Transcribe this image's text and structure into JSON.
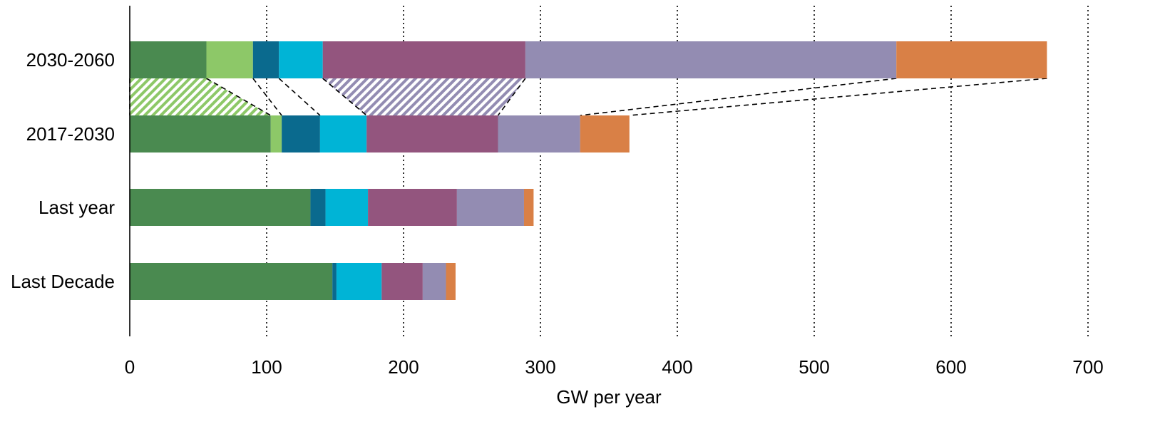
{
  "chart_data": {
    "type": "bar",
    "orientation": "horizontal",
    "stacked": true,
    "title": "",
    "xlabel": "GW per year",
    "ylabel": "",
    "xlim": [
      0,
      700
    ],
    "x_ticks": [
      0,
      100,
      200,
      300,
      400,
      500,
      600,
      700
    ],
    "grid": "vertical dotted",
    "legend": "none",
    "categories": [
      "2030-2060",
      "2017-2030",
      "Last year",
      "Last Decade"
    ],
    "series": [
      {
        "color": "#4a8a50",
        "values": [
          56,
          103,
          132,
          148
        ]
      },
      {
        "color": "#8dc868",
        "values": [
          34,
          8,
          0,
          0
        ]
      },
      {
        "color": "#0a6a8e",
        "values": [
          19,
          28,
          11,
          3
        ]
      },
      {
        "color": "#00b4d6",
        "values": [
          32,
          34,
          31,
          33
        ]
      },
      {
        "color": "#93557e",
        "values": [
          148,
          96,
          65,
          30
        ]
      },
      {
        "color": "#938cb2",
        "values": [
          271,
          60,
          49,
          17
        ]
      },
      {
        "color": "#d98046",
        "values": [
          110,
          36,
          7,
          7
        ]
      }
    ],
    "connectors": [
      {
        "from_category": "2030-2060",
        "to_category": "2017-2030",
        "boundary_after_series": 0,
        "style": "hatched",
        "color": "#8dc868"
      },
      {
        "from_category": "2030-2060",
        "to_category": "2017-2030",
        "boundary_after_series": 1,
        "style": "dashed"
      },
      {
        "from_category": "2030-2060",
        "to_category": "2017-2030",
        "boundary_after_series": 2,
        "style": "dashed"
      },
      {
        "from_category": "2030-2060",
        "to_category": "2017-2030",
        "boundary_after_series": 3,
        "style": "dashed"
      },
      {
        "from_category": "2030-2060",
        "to_category": "2017-2030",
        "boundary_after_series": 4,
        "style": "hatched",
        "color": "#938cb2"
      },
      {
        "from_category": "2030-2060",
        "to_category": "2017-2030",
        "boundary_after_series": 5,
        "style": "dashed"
      },
      {
        "from_category": "2030-2060",
        "to_category": "2017-2030",
        "boundary_after_series": 6,
        "style": "dashed"
      }
    ]
  }
}
